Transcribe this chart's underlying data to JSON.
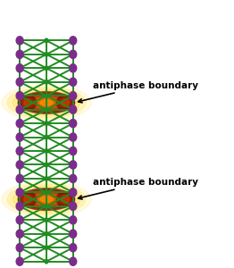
{
  "fig_width": 2.62,
  "fig_height": 3.0,
  "dpi": 100,
  "bg_color": "#ffffff",
  "purple": "#7B2D8B",
  "green": "#228B22",
  "label_fontsize": 7.5,
  "label_fontweight": "bold",
  "nr": 17,
  "cw": 0.115,
  "ch": 0.052,
  "ox": 0.08,
  "oy": 0.02,
  "antiphase_rows": [
    4,
    11
  ],
  "ann1_text": "antiphase boundary",
  "ann2_text": "antiphase boundary",
  "purple_r": 0.018,
  "green_r": 0.01,
  "bond_lw": 1.4
}
